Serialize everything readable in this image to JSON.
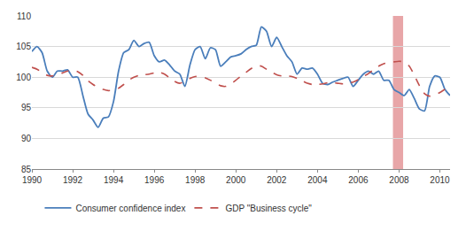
{
  "chart_data": {
    "type": "line",
    "x": [
      1990.0,
      1990.25,
      1990.5,
      1990.75,
      1991.0,
      1991.25,
      1991.5,
      1991.75,
      1992.0,
      1992.25,
      1992.5,
      1992.75,
      1993.0,
      1993.25,
      1993.5,
      1993.75,
      1994.0,
      1994.25,
      1994.5,
      1994.75,
      1995.0,
      1995.25,
      1995.5,
      1995.75,
      1996.0,
      1996.25,
      1996.5,
      1996.75,
      1997.0,
      1997.25,
      1997.5,
      1997.75,
      1998.0,
      1998.25,
      1998.5,
      1998.75,
      1999.0,
      1999.25,
      1999.5,
      1999.75,
      2000.0,
      2000.25,
      2000.5,
      2000.75,
      2001.0,
      2001.25,
      2001.5,
      2001.75,
      2002.0,
      2002.25,
      2002.5,
      2002.75,
      2003.0,
      2003.25,
      2003.5,
      2003.75,
      2004.0,
      2004.25,
      2004.5,
      2004.75,
      2005.0,
      2005.25,
      2005.5,
      2005.75,
      2006.0,
      2006.25,
      2006.5,
      2006.75,
      2007.0,
      2007.25,
      2007.5,
      2007.75,
      2008.0,
      2008.25,
      2008.5,
      2008.75,
      2009.0,
      2009.25,
      2009.5,
      2009.75,
      2010.0,
      2010.25,
      2010.5
    ],
    "series": [
      {
        "name": "Consumer confidence index",
        "color": "#4a7ebb",
        "line_style": "solid",
        "values": [
          104.2,
          105.0,
          104.0,
          101.0,
          100.0,
          101.0,
          101.0,
          101.2,
          100.0,
          100.0,
          97.0,
          94.0,
          93.0,
          91.8,
          93.3,
          93.5,
          96.0,
          101.0,
          104.0,
          104.5,
          106.0,
          105.0,
          105.5,
          105.7,
          103.5,
          102.5,
          102.8,
          102.0,
          101.0,
          100.5,
          98.5,
          102.0,
          104.5,
          105.0,
          103.0,
          104.8,
          104.5,
          101.8,
          102.5,
          103.3,
          103.5,
          103.8,
          104.5,
          105.0,
          105.2,
          108.2,
          107.5,
          105.0,
          106.5,
          105.0,
          103.5,
          102.5,
          100.5,
          101.5,
          101.3,
          101.5,
          100.5,
          99.0,
          98.8,
          99.2,
          99.5,
          99.8,
          100.0,
          98.5,
          99.5,
          100.5,
          101.0,
          100.5,
          101.0,
          99.5,
          99.5,
          98.0,
          97.5,
          97.0,
          98.0,
          96.5,
          94.8,
          94.5,
          98.5,
          100.2,
          100.0,
          98.0,
          97.0
        ]
      },
      {
        "name": "GDP \"Business cycle\"",
        "color": "#c0504d",
        "line_style": "dashed",
        "values": [
          101.6,
          101.3,
          100.8,
          100.3,
          100.2,
          100.5,
          100.7,
          101.0,
          101.2,
          100.9,
          100.3,
          99.4,
          98.8,
          98.3,
          98.0,
          97.8,
          97.9,
          98.2,
          98.8,
          99.5,
          100.0,
          100.3,
          100.4,
          100.5,
          100.7,
          100.8,
          100.5,
          99.9,
          99.3,
          99.0,
          99.3,
          99.8,
          100.1,
          100.1,
          99.9,
          99.5,
          99.0,
          98.6,
          98.5,
          98.9,
          99.5,
          100.2,
          100.8,
          101.4,
          101.9,
          101.8,
          101.3,
          100.8,
          100.4,
          100.2,
          100.2,
          100.1,
          99.8,
          99.4,
          99.0,
          98.8,
          98.8,
          98.9,
          99.1,
          99.1,
          99.0,
          98.9,
          99.0,
          99.2,
          99.6,
          100.1,
          100.6,
          101.2,
          101.8,
          102.2,
          102.4,
          102.5,
          102.6,
          102.5,
          101.8,
          100.3,
          98.6,
          97.3,
          96.9,
          97.1,
          97.5,
          98.0,
          98.4
        ]
      }
    ],
    "bands": [
      {
        "x0": 2007.7,
        "x1": 2008.2,
        "color": "#e8a6a8"
      }
    ],
    "xlim": [
      1990,
      2010.5
    ],
    "xticks": [
      1990,
      1992,
      1994,
      1996,
      1998,
      2000,
      2002,
      2004,
      2006,
      2008,
      2010
    ],
    "ylim": [
      85,
      110
    ],
    "yticks": [
      85,
      90,
      95,
      100,
      105,
      110
    ],
    "grid": true,
    "legend": "bottom"
  }
}
